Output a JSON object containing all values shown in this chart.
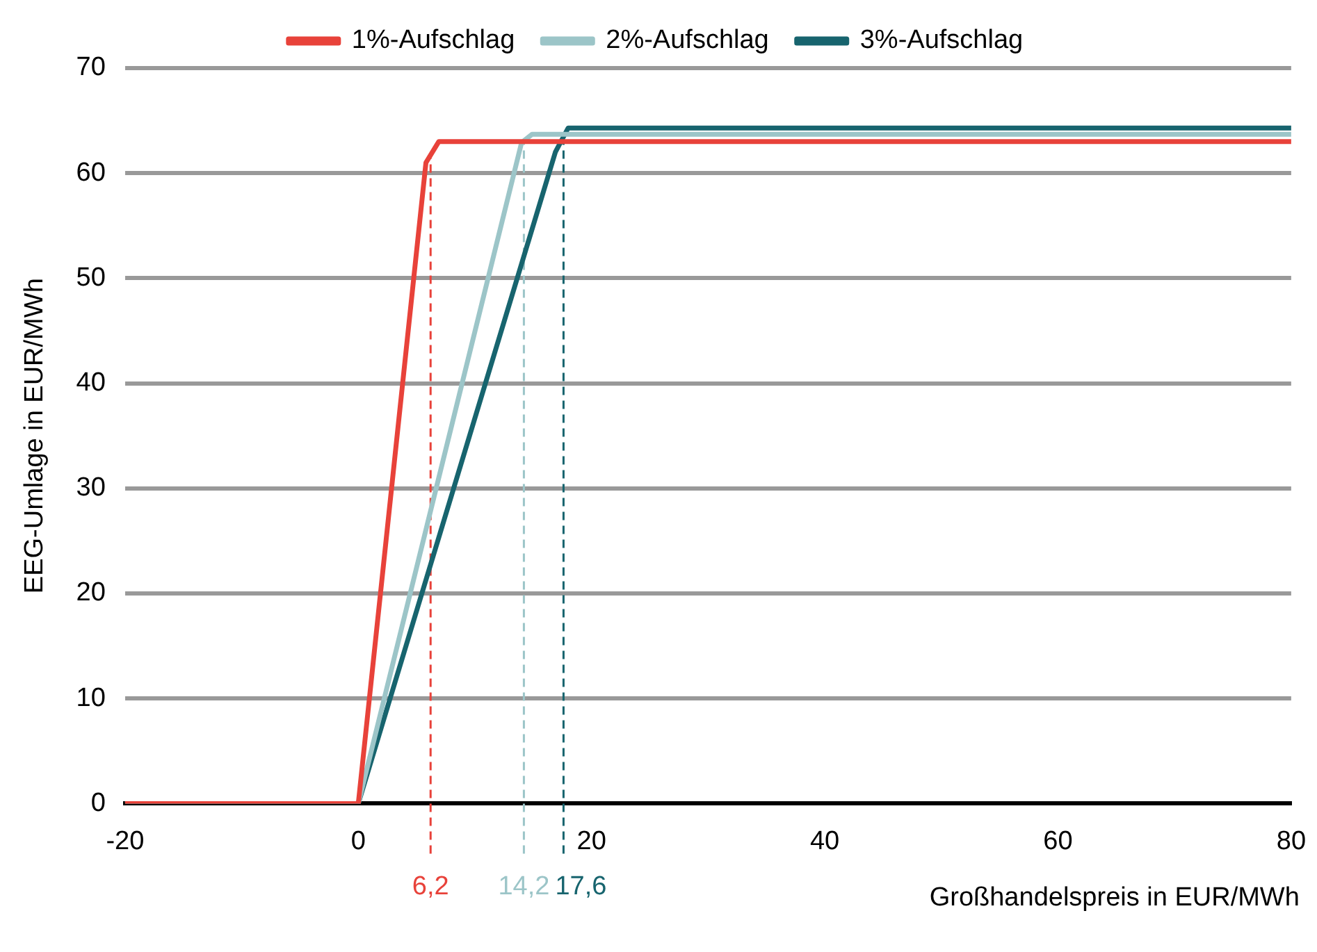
{
  "chart_data": {
    "type": "line",
    "xlabel": "Großhandelspreis in EUR/MWh",
    "ylabel": "EEG-Umlage in EUR/MWh",
    "series": [
      {
        "name": "1%-Aufschlag",
        "color": "#e8423a",
        "x": [
          -20,
          0,
          5.8,
          6.9,
          80
        ],
        "values": [
          0,
          0,
          61,
          63,
          63
        ]
      },
      {
        "name": "2%-Aufschlag",
        "color": "#9cc5c8",
        "x": [
          -20,
          0,
          14,
          14.9,
          80
        ],
        "values": [
          0,
          0,
          62.9,
          63.7,
          63.7
        ]
      },
      {
        "name": "3%-Aufschlag",
        "color": "#17646e",
        "x": [
          -20,
          0,
          16.9,
          18,
          80
        ],
        "values": [
          0,
          0,
          62,
          64.3,
          64.3
        ]
      }
    ],
    "xlim": [
      -20,
      80
    ],
    "xticks": [
      -20,
      0,
      20,
      40,
      60,
      80
    ],
    "ylim": [
      0,
      70
    ],
    "yticks": [
      0,
      10,
      20,
      30,
      40,
      50,
      60,
      70
    ],
    "ref_lines": [
      {
        "axis": "x",
        "value": 6.2,
        "label": "6,2",
        "color": "#e8423a",
        "line_style": "dashed"
      },
      {
        "axis": "x",
        "value": 14.2,
        "label": "14,2",
        "color": "#9cc5c8",
        "line_style": "dashed"
      },
      {
        "axis": "x",
        "value": 17.6,
        "label": "17,6",
        "color": "#17646e",
        "line_style": "dashed"
      }
    ],
    "grid": "y",
    "legend": "top",
    "marker": "none",
    "line_style": "solid"
  }
}
